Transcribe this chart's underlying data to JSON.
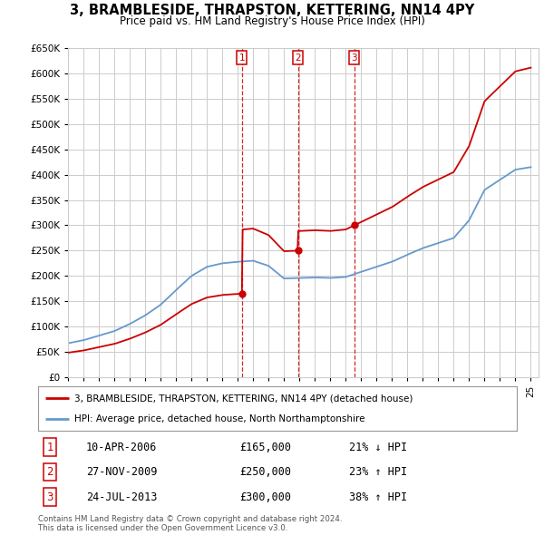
{
  "title": "3, BRAMBLESIDE, THRAPSTON, KETTERING, NN14 4PY",
  "subtitle": "Price paid vs. HM Land Registry's House Price Index (HPI)",
  "ylim": [
    0,
    650000
  ],
  "yticks": [
    0,
    50000,
    100000,
    150000,
    200000,
    250000,
    300000,
    350000,
    400000,
    450000,
    500000,
    550000,
    600000,
    650000
  ],
  "ytick_labels": [
    "£0",
    "£50K",
    "£100K",
    "£150K",
    "£200K",
    "£250K",
    "£300K",
    "£350K",
    "£400K",
    "£450K",
    "£500K",
    "£550K",
    "£600K",
    "£650K"
  ],
  "xlim_start": 1995.0,
  "xlim_end": 2025.5,
  "sales": [
    {
      "num": 1,
      "date_x": 2006.27,
      "price": 165000,
      "label": "10-APR-2006",
      "price_label": "£165,000",
      "pct": "21% ↓ HPI"
    },
    {
      "num": 2,
      "date_x": 2009.9,
      "price": 250000,
      "label": "27-NOV-2009",
      "price_label": "£250,000",
      "pct": "23% ↑ HPI"
    },
    {
      "num": 3,
      "date_x": 2013.56,
      "price": 300000,
      "label": "24-JUL-2013",
      "price_label": "£300,000",
      "pct": "38% ↑ HPI"
    }
  ],
  "hpi_color": "#6699cc",
  "sale_color": "#cc0000",
  "legend_line1": "3, BRAMBLESIDE, THRAPSTON, KETTERING, NN14 4PY (detached house)",
  "legend_line2": "HPI: Average price, detached house, North Northamptonshire",
  "footer1": "Contains HM Land Registry data © Crown copyright and database right 2024.",
  "footer2": "This data is licensed under the Open Government Licence v3.0.",
  "bg_color": "#ffffff",
  "grid_color": "#cccccc",
  "hpi_curve_years": [
    1995,
    1996,
    1997,
    1998,
    1999,
    2000,
    2001,
    2002,
    2003,
    2004,
    2005,
    2006,
    2007,
    2008,
    2009,
    2010,
    2011,
    2012,
    2013,
    2014,
    2015,
    2016,
    2017,
    2018,
    2019,
    2020,
    2021,
    2022,
    2023,
    2024,
    2025
  ],
  "hpi_curve_vals": [
    67000,
    73000,
    82000,
    91000,
    105000,
    122000,
    143000,
    172000,
    200000,
    218000,
    225000,
    228000,
    230000,
    220000,
    195000,
    196000,
    197000,
    196000,
    198000,
    208000,
    218000,
    228000,
    242000,
    255000,
    265000,
    275000,
    310000,
    370000,
    390000,
    410000,
    415000
  ]
}
